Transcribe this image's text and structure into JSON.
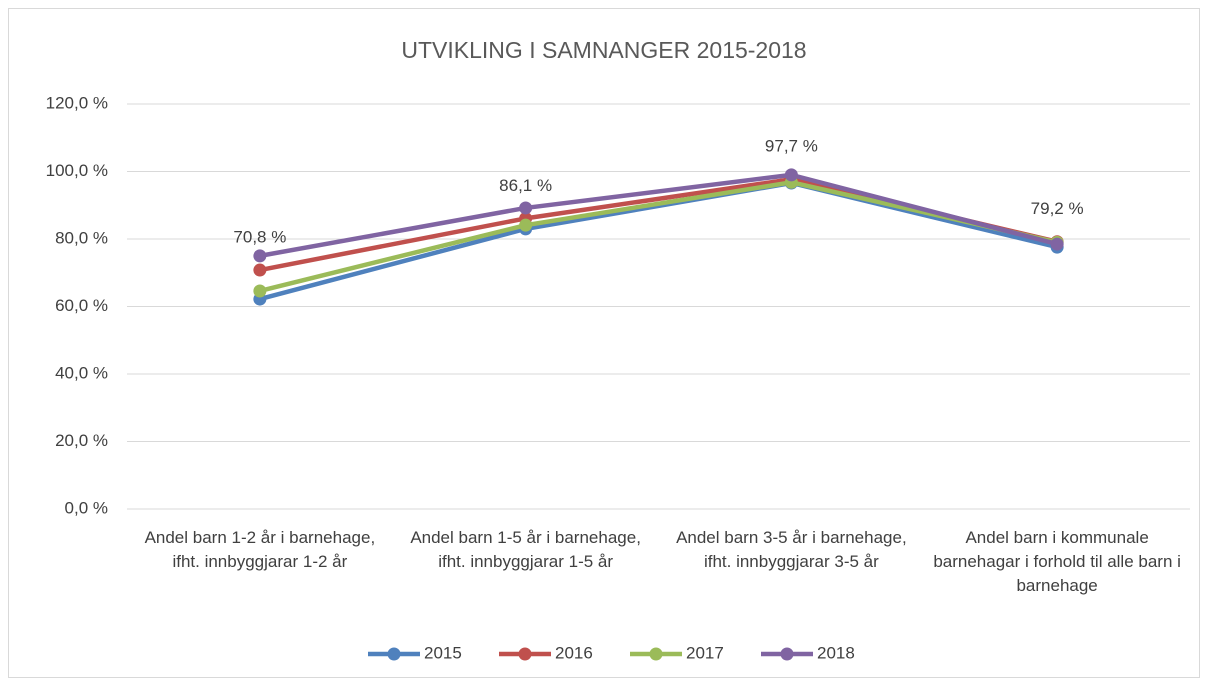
{
  "chart_data": {
    "type": "line",
    "title": "UTVIKLING I SAMNANGER 2015-2018",
    "categories": [
      "Andel barn 1-2 år i barnehage, ifht. innbyggjarar 1-2 år",
      "Andel barn 1-5 år i barnehage, ifht. innbyggjarar 1-5 år",
      "Andel barn 3-5 år i barnehage, ifht. innbyggjarar 3-5 år",
      "Andel barn i kommunale barnehagar i forhold til alle barn i barnehage"
    ],
    "series": [
      {
        "name": "2015",
        "color": "#4f81bd",
        "values": [
          62.2,
          83.0,
          96.6,
          77.6
        ]
      },
      {
        "name": "2016",
        "color": "#c0504d",
        "values": [
          70.8,
          86.1,
          97.7,
          79.2
        ],
        "value_labels": [
          "70,8 %",
          "86,1 %",
          "97,7 %",
          "79,2 %"
        ]
      },
      {
        "name": "2017",
        "color": "#9bbb59",
        "values": [
          64.6,
          84.1,
          96.8,
          79.0
        ]
      },
      {
        "name": "2018",
        "color": "#8064a2",
        "values": [
          75.0,
          89.2,
          99.0,
          78.5
        ]
      }
    ],
    "ylim": [
      0,
      120
    ],
    "yticks": [
      {
        "value": 0,
        "label": "0,0 %"
      },
      {
        "value": 20,
        "label": "20,0 %"
      },
      {
        "value": 40,
        "label": "40,0 %"
      },
      {
        "value": 60,
        "label": "60,0 %"
      },
      {
        "value": 80,
        "label": "80,0 %"
      },
      {
        "value": 100,
        "label": "100,0 %"
      },
      {
        "value": 120,
        "label": "120,0 %"
      }
    ],
    "grid": true,
    "legend": "bottom"
  }
}
